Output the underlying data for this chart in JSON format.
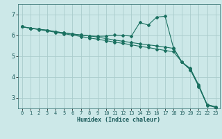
{
  "title": "",
  "xlabel": "Humidex (Indice chaleur)",
  "ylabel": "",
  "bg_color": "#cce8e8",
  "grid_color": "#aacccc",
  "line_color": "#1a7060",
  "xlim": [
    -0.5,
    23.5
  ],
  "ylim": [
    2.5,
    7.5
  ],
  "yticks": [
    3,
    4,
    5,
    6,
    7
  ],
  "xtick_labels": [
    "0",
    "1",
    "2",
    "3",
    "4",
    "5",
    "6",
    "7",
    "8",
    "9",
    "10",
    "11",
    "12",
    "13",
    "14",
    "15",
    "16",
    "17",
    "18",
    "19",
    "20",
    "21",
    "22",
    "23"
  ],
  "line1_x": [
    0,
    1,
    2,
    3,
    4,
    5,
    6,
    7,
    8,
    9,
    10,
    11,
    12,
    13,
    14,
    15,
    16,
    17,
    18,
    19,
    20,
    21,
    22,
    23
  ],
  "line1_y": [
    6.42,
    6.35,
    6.3,
    6.25,
    6.18,
    6.12,
    6.07,
    6.02,
    5.98,
    5.96,
    5.97,
    6.02,
    6.0,
    5.97,
    6.62,
    6.5,
    6.88,
    6.92,
    5.4,
    4.72,
    4.42,
    3.62,
    2.68,
    2.58
  ],
  "line2_x": [
    0,
    1,
    2,
    3,
    4,
    5,
    6,
    7,
    8,
    9,
    10,
    11,
    12,
    13,
    14,
    15,
    16,
    17,
    18,
    19,
    20,
    21,
    22,
    23
  ],
  "line2_y": [
    6.42,
    6.35,
    6.3,
    6.25,
    6.18,
    6.12,
    6.07,
    6.02,
    5.98,
    5.92,
    5.85,
    5.78,
    5.72,
    5.66,
    5.6,
    5.55,
    5.5,
    5.44,
    5.38,
    4.72,
    4.38,
    3.58,
    2.68,
    2.58
  ],
  "line3_x": [
    0,
    1,
    2,
    3,
    4,
    5,
    6,
    7,
    8,
    9,
    10,
    11,
    12,
    13,
    14,
    15,
    16,
    17,
    18,
    19,
    20,
    21,
    22,
    23
  ],
  "line3_y": [
    6.42,
    6.35,
    6.28,
    6.22,
    6.15,
    6.08,
    6.02,
    5.95,
    5.88,
    5.82,
    5.75,
    5.68,
    5.62,
    5.55,
    5.48,
    5.42,
    5.35,
    5.28,
    5.22,
    4.72,
    4.35,
    3.55,
    2.65,
    2.55
  ],
  "xlabel_fontsize": 6,
  "tick_fontsize_x": 5,
  "tick_fontsize_y": 6
}
